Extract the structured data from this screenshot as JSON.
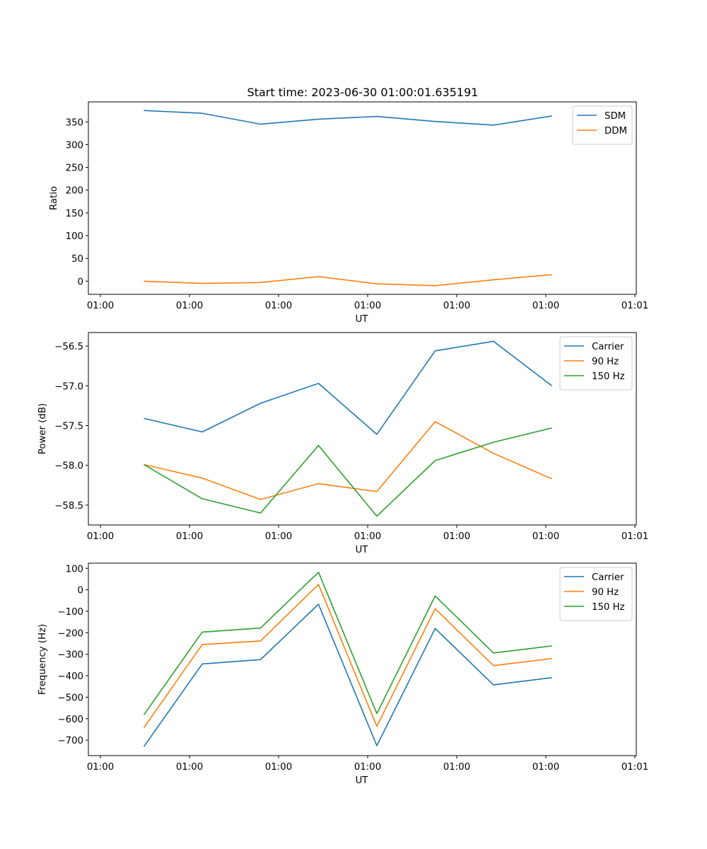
{
  "figure": {
    "title": "Start time: 2023-06-30 01:00:01.635191"
  },
  "chart_data": [
    {
      "type": "line",
      "title": "Start time: 2023-06-30 01:00:01.635191",
      "xlabel": "UT",
      "ylabel": "Ratio",
      "x_tick_labels": [
        "01:00",
        "01:00",
        "01:00",
        "01:00",
        "01:00",
        "01:00",
        "01:00"
      ],
      "y_ticks": [
        0,
        50,
        100,
        150,
        200,
        250,
        300,
        350
      ],
      "ylim": [
        -29,
        394
      ],
      "legend_position": "top-right",
      "grid": false,
      "series": [
        {
          "name": "SDM",
          "color": "#1f77b4",
          "values": [
            375,
            369,
            345,
            356,
            362,
            351,
            343,
            363
          ]
        },
        {
          "name": "DDM",
          "color": "#ff7f0e",
          "values": [
            0,
            -5,
            -3,
            10,
            -6,
            -10,
            3,
            14
          ]
        }
      ]
    },
    {
      "type": "line",
      "title": "",
      "xlabel": "UT",
      "ylabel": "Power (dB)",
      "x_tick_labels": [
        "01:00",
        "01:00",
        "01:00",
        "01:00",
        "01:00",
        "01:00",
        "01:00"
      ],
      "y_ticks": [
        -58.5,
        -58.0,
        -57.5,
        -57.0,
        -56.5
      ],
      "y_tick_labels": [
        "−58.5",
        "−58.0",
        "−57.5",
        "−57.0",
        "−56.5"
      ],
      "ylim": [
        -58.75,
        -56.33
      ],
      "legend_position": "top-right",
      "grid": false,
      "series": [
        {
          "name": "Carrier",
          "color": "#1f77b4",
          "values": [
            -57.41,
            -57.58,
            -57.22,
            -56.97,
            -57.61,
            -56.56,
            -56.44,
            -57.0
          ]
        },
        {
          "name": "90 Hz",
          "color": "#ff7f0e",
          "values": [
            -57.99,
            -58.16,
            -58.43,
            -58.23,
            -58.33,
            -57.45,
            -57.85,
            -58.17
          ]
        },
        {
          "name": "150 Hz",
          "color": "#2ca02c",
          "values": [
            -57.99,
            -58.42,
            -58.6,
            -57.75,
            -58.64,
            -57.94,
            -57.71,
            -57.53
          ]
        }
      ]
    },
    {
      "type": "line",
      "title": "",
      "xlabel": "UT",
      "ylabel": "Frequency (Hz)",
      "x_tick_labels": [
        "01:00",
        "01:00",
        "01:00",
        "01:00",
        "01:00",
        "01:00",
        "01:00"
      ],
      "y_ticks": [
        -700,
        -600,
        -500,
        -400,
        -300,
        -200,
        -100,
        0,
        100
      ],
      "y_tick_labels": [
        "−700",
        "−600",
        "−500",
        "−400",
        "−300",
        "−200",
        "−100",
        "0",
        "100"
      ],
      "ylim": [
        -772,
        124
      ],
      "legend_position": "top-right",
      "grid": false,
      "series": [
        {
          "name": "Carrier",
          "color": "#1f77b4",
          "values": [
            -730,
            -345,
            -325,
            -67,
            -726,
            -180,
            -443,
            -409
          ]
        },
        {
          "name": "90 Hz",
          "color": "#ff7f0e",
          "values": [
            -642,
            -255,
            -238,
            25,
            -636,
            -88,
            -353,
            -320
          ]
        },
        {
          "name": "150 Hz",
          "color": "#2ca02c",
          "values": [
            -582,
            -197,
            -178,
            82,
            -576,
            -29,
            -294,
            -261
          ]
        }
      ]
    }
  ]
}
